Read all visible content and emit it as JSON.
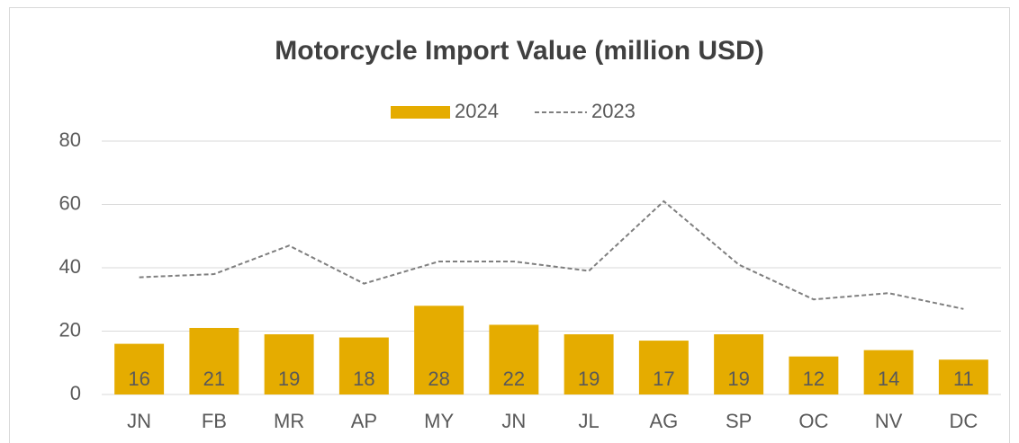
{
  "chart_data": {
    "type": "bar",
    "title": "Motorcycle Import Value (million USD)",
    "categories": [
      "JN",
      "FB",
      "MR",
      "AP",
      "MY",
      "JN",
      "JL",
      "AG",
      "SP",
      "OC",
      "NV",
      "DC"
    ],
    "series": [
      {
        "name": "2024",
        "type": "bar",
        "color": "#e5ac00",
        "values": [
          16,
          21,
          19,
          18,
          28,
          22,
          19,
          17,
          19,
          12,
          14,
          11
        ]
      },
      {
        "name": "2023",
        "type": "line",
        "color": "#7f7f7f",
        "dashed": true,
        "values": [
          37,
          38,
          47,
          35,
          42,
          42,
          39,
          61,
          41,
          30,
          32,
          27
        ]
      }
    ],
    "ylim": [
      0,
      80
    ],
    "yticks": [
      0,
      20,
      40,
      60,
      80
    ],
    "grid": true,
    "legend": "top",
    "data_labels": true
  }
}
